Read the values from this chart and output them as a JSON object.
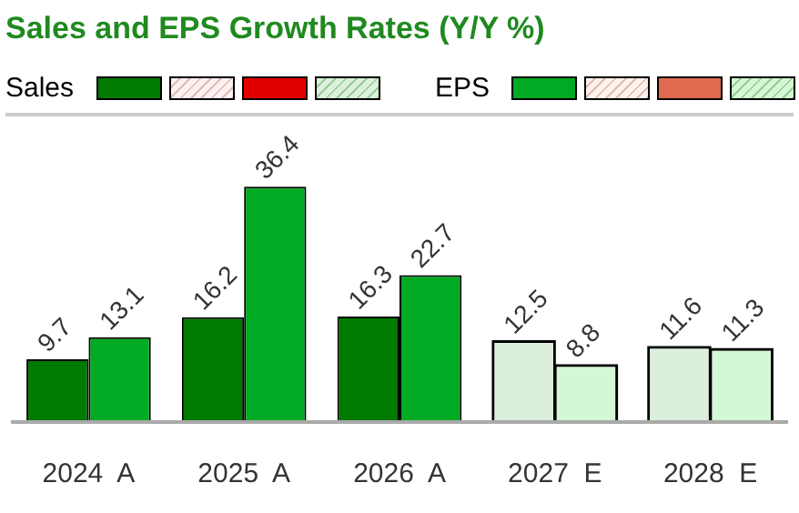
{
  "chart_data": {
    "type": "bar",
    "title": "Sales and EPS Growth Rates (Y/Y %)",
    "categories": [
      "2024  A",
      "2025  A",
      "2026  A",
      "2027  E",
      "2028  E"
    ],
    "series": [
      {
        "name": "Sales",
        "colors": [
          "#007a00",
          "#007a00",
          "#007a00",
          "#dcefdc",
          "#dcefdc"
        ],
        "values": [
          9.7,
          16.2,
          16.3,
          12.5,
          11.6
        ]
      },
      {
        "name": "EPS",
        "colors": [
          "#00aa22",
          "#00aa22",
          "#00aa22",
          "#d4f7d4",
          "#d4f7d4"
        ],
        "values": [
          13.1,
          36.4,
          22.7,
          8.8,
          11.3
        ]
      }
    ],
    "data_labels": true,
    "legend": "top left",
    "grid": false
  }
}
